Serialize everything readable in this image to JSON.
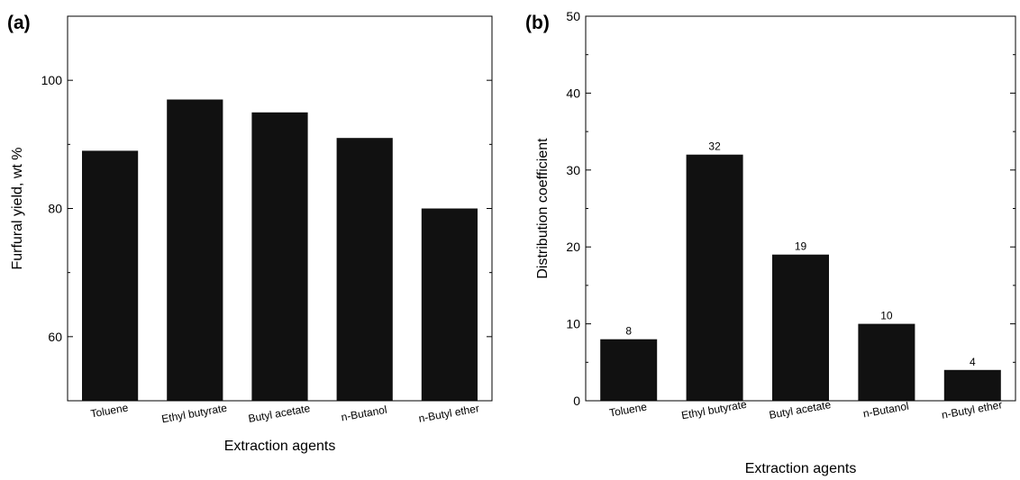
{
  "colors": {
    "bar": "#111111",
    "axis": "#000000"
  },
  "chart_data": [
    {
      "panel": "(a)",
      "type": "bar",
      "categories": [
        "Toluene",
        "Ethyl butyrate",
        "Butyl acetate",
        "n-Butanol",
        "n-Butyl ether"
      ],
      "values": [
        89,
        97,
        95,
        91,
        80
      ],
      "data_labels": [],
      "xlabel": "Extraction agents",
      "ylabel": "Furfural yield, wt %",
      "ylim": [
        50,
        110
      ],
      "yticks_major": [
        60,
        80,
        100
      ],
      "yticks_minor": [
        50,
        70,
        90,
        110
      ],
      "grid": false,
      "legend": "none"
    },
    {
      "panel": "(b)",
      "type": "bar",
      "categories": [
        "Toluene",
        "Ethyl butyrate",
        "Butyl acetate",
        "n-Butanol",
        "n-Butyl ether"
      ],
      "values": [
        8,
        32,
        19,
        10,
        4
      ],
      "data_labels": [
        "8",
        "32",
        "19",
        "10",
        "4"
      ],
      "xlabel": "Extraction agents",
      "ylabel": "Distribution coefficient",
      "ylim": [
        0,
        50
      ],
      "yticks_major": [
        0,
        10,
        20,
        30,
        40,
        50
      ],
      "yticks_minor": [
        5,
        15,
        25,
        35,
        45
      ],
      "grid": false,
      "legend": "none"
    }
  ]
}
